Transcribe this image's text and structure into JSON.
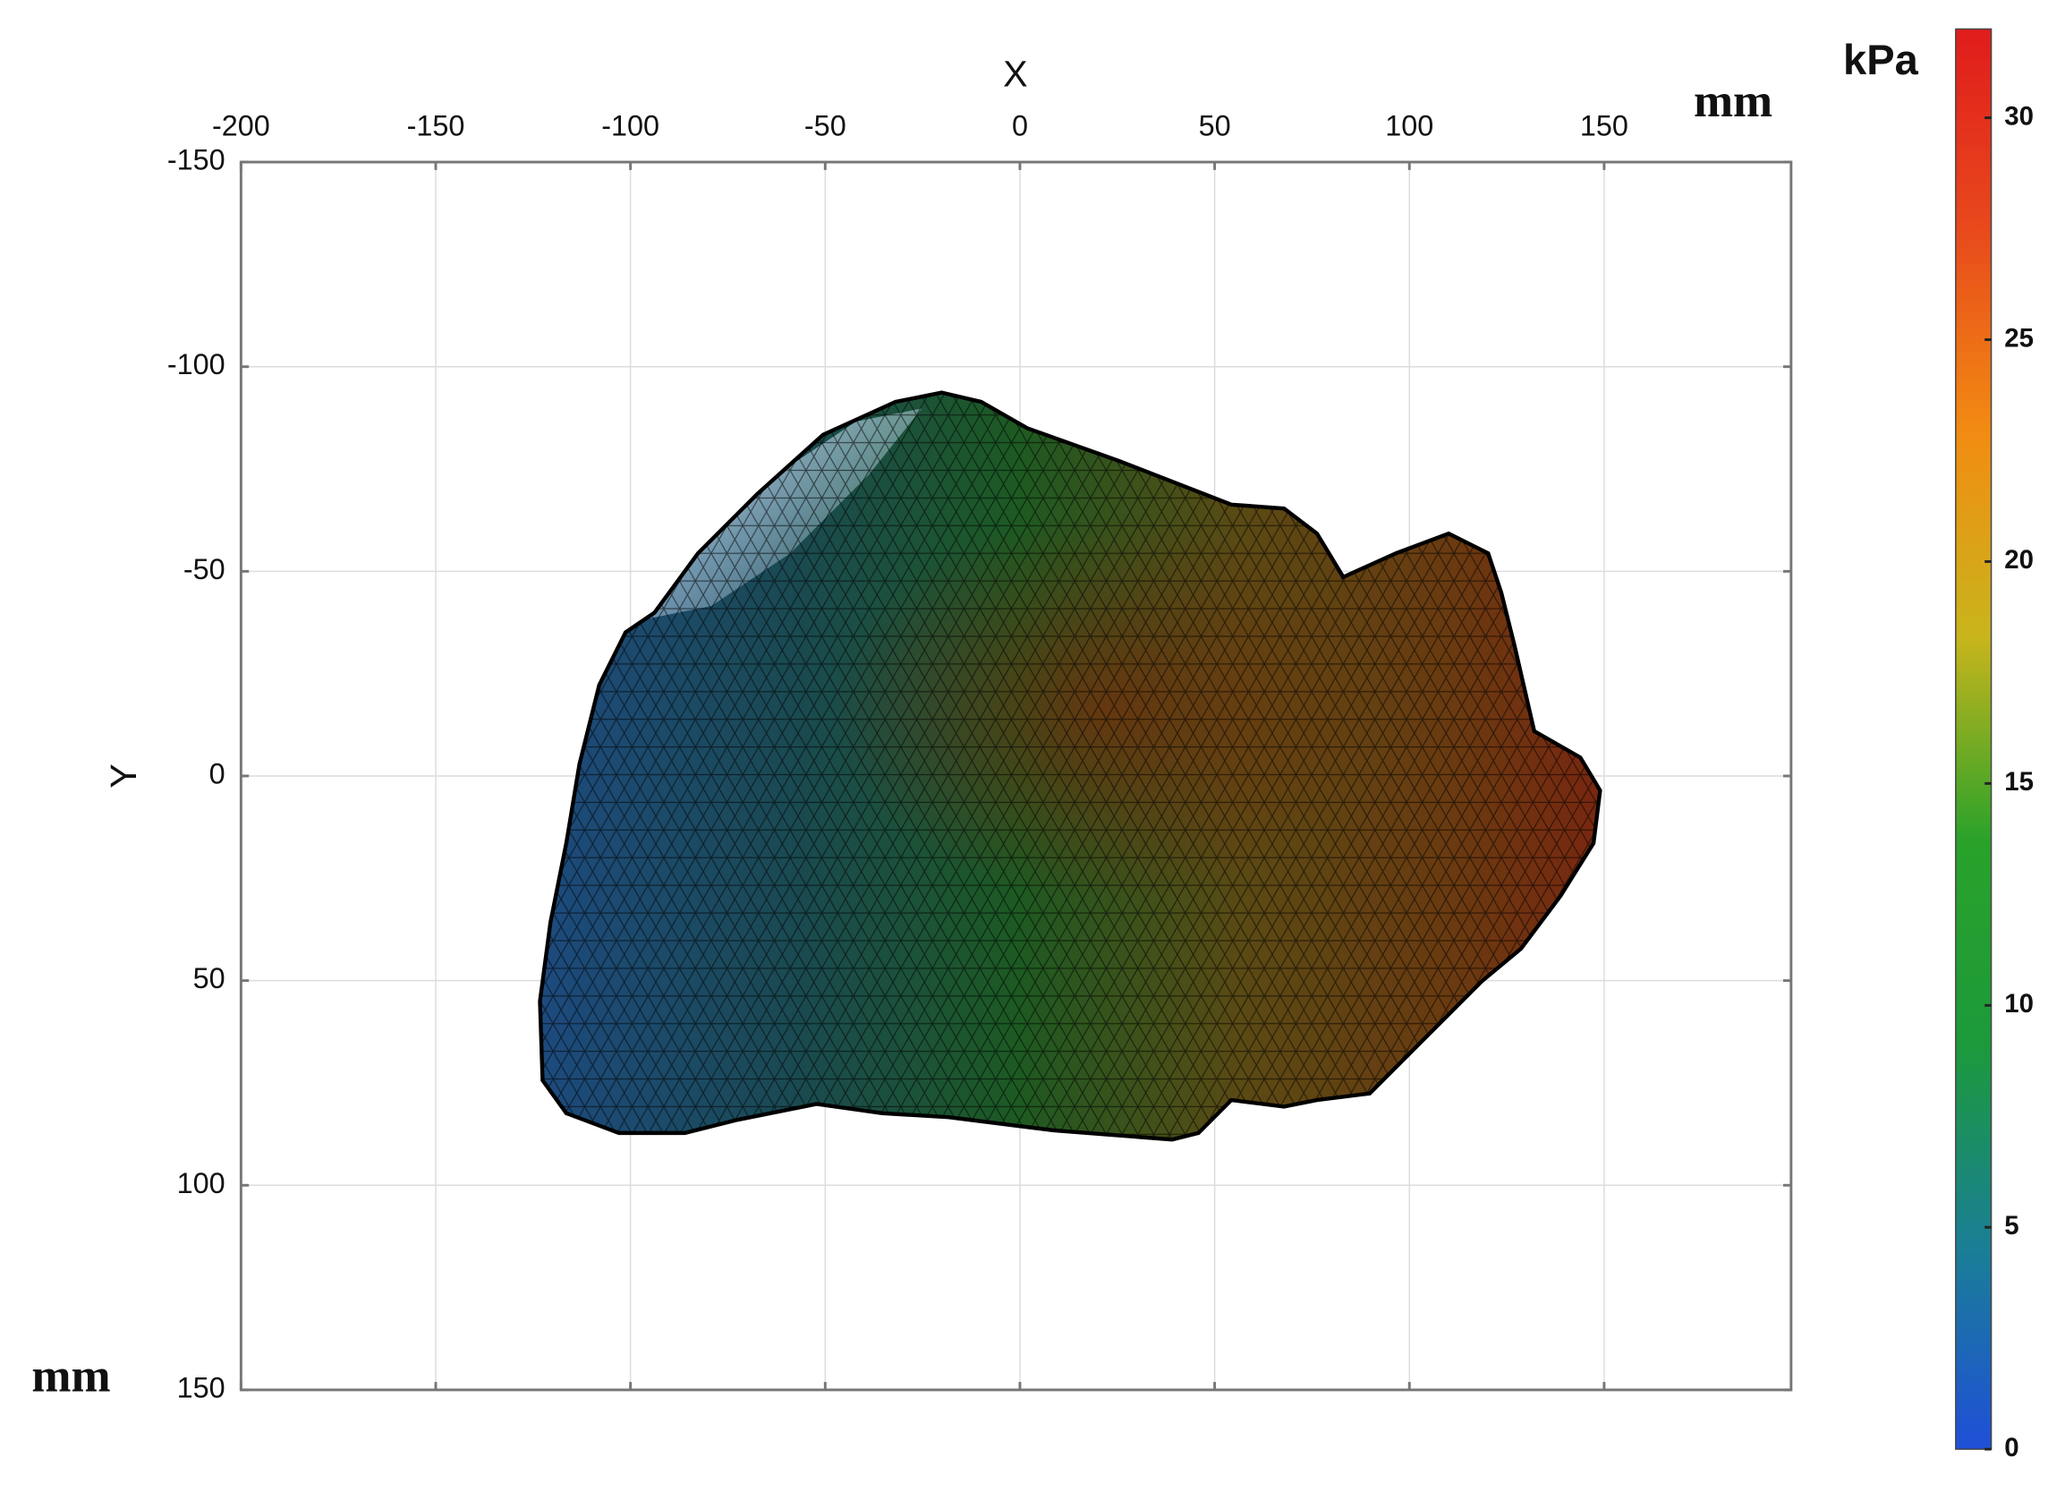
{
  "chart_data": {
    "type": "surface",
    "x_label": "X",
    "y_label": "Y",
    "x_unit": "mm",
    "y_unit": "mm",
    "xlim": [
      -200,
      198
    ],
    "ylim": [
      -150,
      150
    ],
    "y_reversed": true,
    "xticks": [
      -200,
      -150,
      -100,
      -50,
      0,
      50,
      100,
      150
    ],
    "yticks": [
      -150,
      -100,
      -50,
      0,
      50,
      100,
      150
    ],
    "grid": true,
    "colorbar": {
      "label": "kPa",
      "clim": [
        0,
        32
      ],
      "ticks": [
        0,
        5,
        10,
        15,
        20,
        25,
        30
      ],
      "colors": [
        "#1f4fd8",
        "#1a7f95",
        "#1c9a3a",
        "#2aa22a",
        "#c8b51c",
        "#f28c12",
        "#e84a1c",
        "#e01c1c"
      ]
    }
  }
}
